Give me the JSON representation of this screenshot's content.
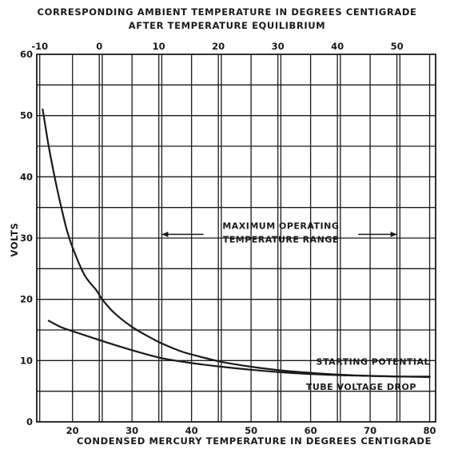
{
  "chart_data": {
    "type": "line",
    "title": "CORRESPONDING AMBIENT TEMPERATURE IN DEGREES CENTIGRADE",
    "subtitle": "AFTER TEMPERATURE EQUILIBRIUM",
    "xlabel": "CONDENSED MERCURY TEMPERATURE IN DEGREES CENTIGRADE",
    "ylabel": "VOLTS",
    "xlim": [
      14,
      81
    ],
    "ylim": [
      0,
      60
    ],
    "x_ticks": [
      20,
      30,
      40,
      50,
      60,
      70,
      80
    ],
    "y_ticks": [
      0,
      10,
      20,
      30,
      40,
      50,
      60
    ],
    "x_minor_step": 5,
    "y_minor_step": 5,
    "top_axis": {
      "ticks": [
        -10,
        0,
        10,
        20,
        30,
        40,
        50
      ],
      "tick_at_x": [
        14.5,
        24.5,
        34.5,
        44.5,
        54.5,
        64.5,
        74.5
      ]
    },
    "grid": true,
    "legend": "none",
    "series": [
      {
        "name": "STARTING POTENTIAL",
        "x": [
          15,
          16,
          17,
          18,
          19,
          20,
          22,
          24,
          25,
          27,
          30,
          33,
          35,
          38,
          40,
          45,
          50,
          55,
          60,
          65,
          70,
          75,
          80
        ],
        "y": [
          51,
          45,
          40,
          35.5,
          31.5,
          28.5,
          24,
          21.5,
          20,
          17.8,
          15.5,
          13.8,
          12.8,
          11.6,
          11,
          9.8,
          9,
          8.4,
          8,
          7.7,
          7.5,
          7.4,
          7.3
        ]
      },
      {
        "name": "TUBE VOLTAGE DROP",
        "x": [
          16,
          18,
          20,
          25,
          30,
          35,
          40,
          45,
          50,
          55,
          60,
          65,
          70,
          75,
          80
        ],
        "y": [
          16.5,
          15.5,
          14.8,
          13.2,
          11.7,
          10.4,
          9.6,
          9,
          8.5,
          8.1,
          7.8,
          7.6,
          7.5,
          7.4,
          7.4
        ]
      }
    ],
    "annotations": [
      {
        "text": "MAXIMUM OPERATING",
        "x": 55,
        "y": 31.5
      },
      {
        "text": "TEMPERATURE RANGE",
        "x": 55,
        "y": 29.3
      },
      {
        "text": "STARTING POTENTIAL",
        "x": 70.5,
        "y": 9.3
      },
      {
        "text": "TUBE VOLTAGE DROP",
        "x": 68.5,
        "y": 5.2
      }
    ],
    "range_arrow": {
      "from_x": 35,
      "to_x": 74.5,
      "y": 30.6
    }
  }
}
